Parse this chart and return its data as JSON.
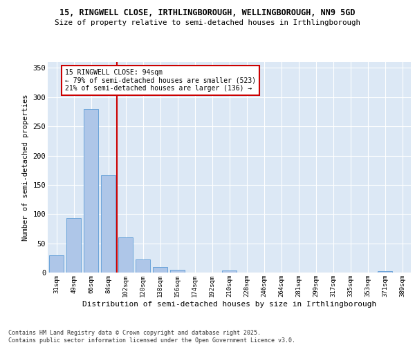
{
  "title_line1": "15, RINGWELL CLOSE, IRTHLINGBOROUGH, WELLINGBOROUGH, NN9 5GD",
  "title_line2": "Size of property relative to semi-detached houses in Irthlingborough",
  "xlabel": "Distribution of semi-detached houses by size in Irthlingborough",
  "ylabel": "Number of semi-detached properties",
  "bin_labels": [
    "31sqm",
    "49sqm",
    "66sqm",
    "84sqm",
    "102sqm",
    "120sqm",
    "138sqm",
    "156sqm",
    "174sqm",
    "192sqm",
    "210sqm",
    "228sqm",
    "246sqm",
    "264sqm",
    "281sqm",
    "299sqm",
    "317sqm",
    "335sqm",
    "353sqm",
    "371sqm",
    "389sqm"
  ],
  "bar_values": [
    30,
    93,
    280,
    167,
    60,
    22,
    10,
    5,
    0,
    0,
    4,
    0,
    0,
    0,
    0,
    0,
    0,
    0,
    0,
    2,
    0
  ],
  "bar_color": "#aec6e8",
  "bar_edge_color": "#5b9bd5",
  "background_color": "#dce8f5",
  "grid_color": "#ffffff",
  "vline_x": 3.5,
  "vline_color": "#cc0000",
  "annotation_title": "15 RINGWELL CLOSE: 94sqm",
  "annotation_line2": "← 79% of semi-detached houses are smaller (523)",
  "annotation_line3": "21% of semi-detached houses are larger (136) →",
  "annotation_box_color": "#cc0000",
  "ylim": [
    0,
    360
  ],
  "yticks": [
    0,
    50,
    100,
    150,
    200,
    250,
    300,
    350
  ],
  "footer_line1": "Contains HM Land Registry data © Crown copyright and database right 2025.",
  "footer_line2": "Contains public sector information licensed under the Open Government Licence v3.0."
}
